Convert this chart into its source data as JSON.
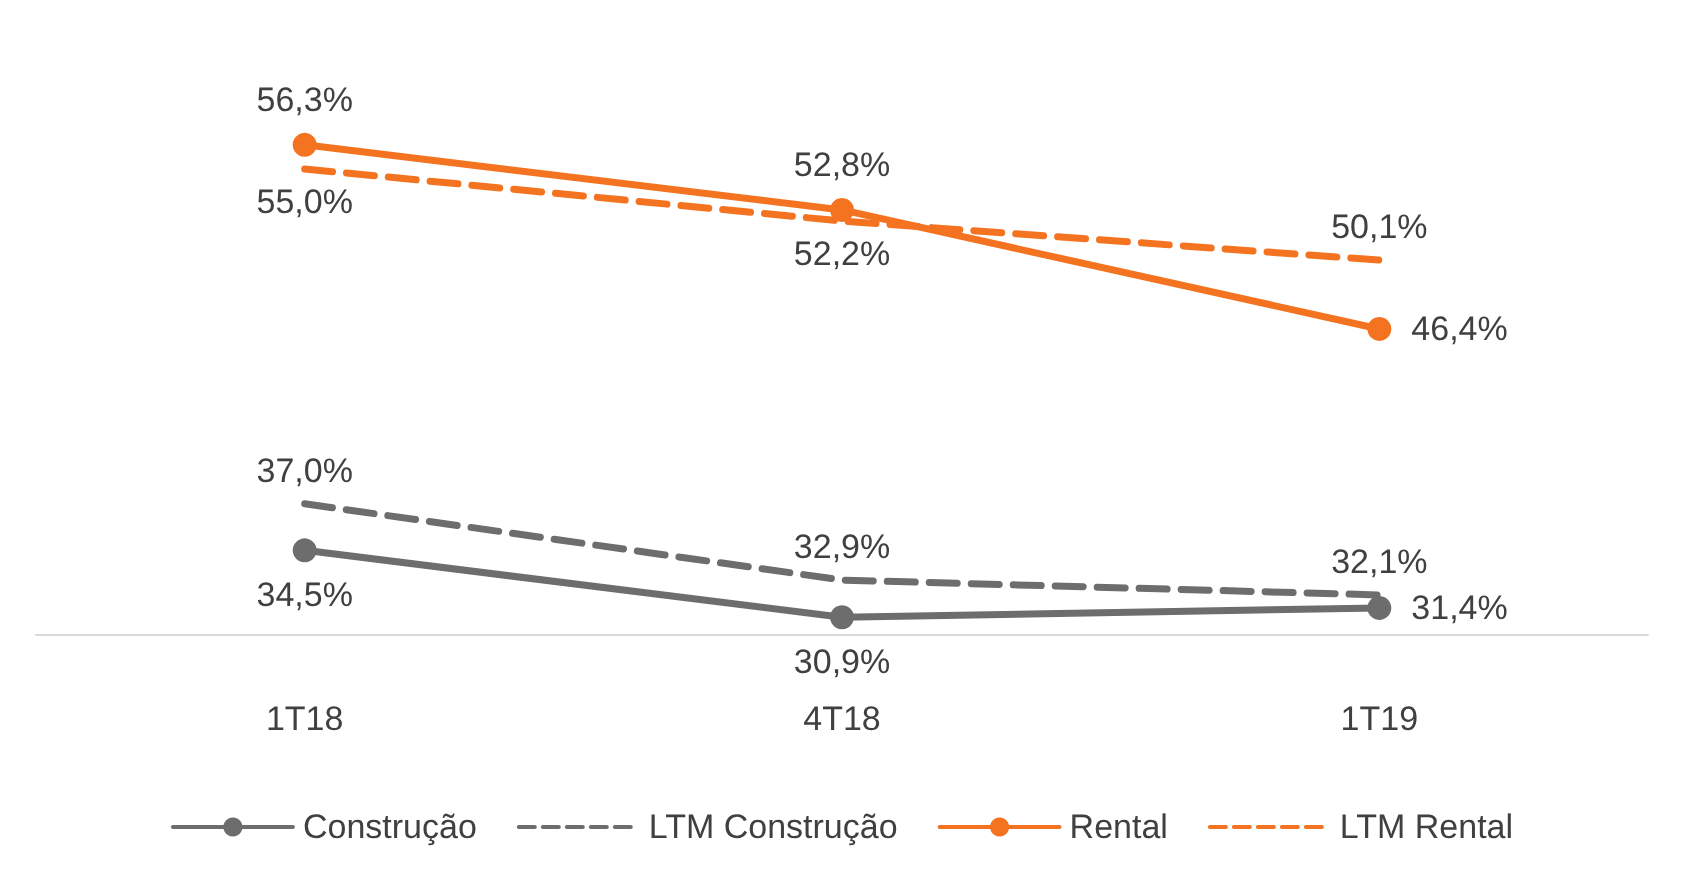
{
  "chart_data": {
    "type": "line",
    "categories": [
      "1T18",
      "4T18",
      "1T19"
    ],
    "tick_labels": "x",
    "grid": false,
    "legend": "bottom",
    "series": [
      {
        "name": "Construção",
        "color": "#6d6d6d",
        "values": [
          34.5,
          30.9,
          31.4
        ],
        "value_labels": [
          "34,5%",
          "30,9%",
          "31,4%"
        ],
        "line_style": "solid",
        "marker": "circle"
      },
      {
        "name": "LTM Construção",
        "color": "#6d6d6d",
        "values": [
          37.0,
          32.9,
          32.1
        ],
        "value_labels": [
          "37,0%",
          "32,9%",
          "32,1%"
        ],
        "line_style": "dashed",
        "marker": "none"
      },
      {
        "name": "Rental",
        "color": "#f47320",
        "values": [
          56.3,
          52.8,
          46.4
        ],
        "value_labels": [
          "56,3%",
          "52,8%",
          "46,4%"
        ],
        "line_style": "solid",
        "marker": "circle"
      },
      {
        "name": "LTM Rental",
        "color": "#f47320",
        "values": [
          55.0,
          52.2,
          50.1
        ],
        "value_labels": [
          "55,0%",
          "52,2%",
          "50,1%"
        ],
        "line_style": "dashed",
        "marker": "none"
      }
    ]
  }
}
